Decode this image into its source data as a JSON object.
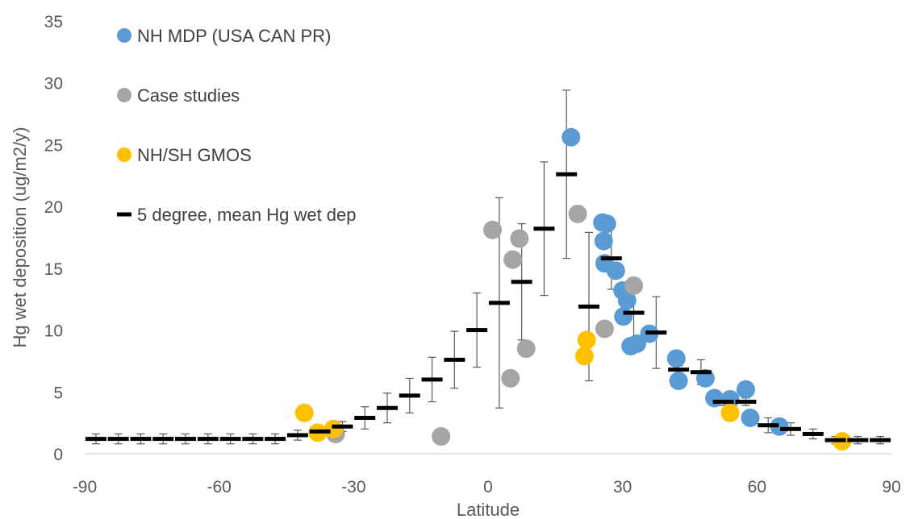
{
  "chart_data": {
    "type": "scatter",
    "title": "",
    "xlabel": "Latitude",
    "ylabel": "Hg wet deposition (ug/m2/y)",
    "xlim": [
      -90,
      90
    ],
    "ylim": [
      0,
      35
    ],
    "xticks": [
      -90,
      -60,
      -30,
      0,
      30,
      60,
      90
    ],
    "yticks": [
      0,
      5,
      10,
      15,
      20,
      25,
      30,
      35
    ],
    "grid": false,
    "legend_position": "top-left",
    "series": [
      {
        "name": "NH MDP (USA CAN PR)",
        "marker": "circle",
        "color": "#5b9bd5",
        "points": [
          [
            18.5,
            25.6
          ],
          [
            25.5,
            18.7
          ],
          [
            26.5,
            18.6
          ],
          [
            25.8,
            17.2
          ],
          [
            26,
            15.4
          ],
          [
            28.5,
            14.8
          ],
          [
            30,
            13.2
          ],
          [
            31,
            12.4
          ],
          [
            30.2,
            11.1
          ],
          [
            31.8,
            8.7
          ],
          [
            33.2,
            8.9
          ],
          [
            36,
            9.7
          ],
          [
            42,
            7.7
          ],
          [
            42.5,
            5.9
          ],
          [
            48.5,
            6.1
          ],
          [
            50.5,
            4.5
          ],
          [
            54,
            4.4
          ],
          [
            57.5,
            5.2
          ],
          [
            58.5,
            2.9
          ],
          [
            65,
            2.2
          ]
        ]
      },
      {
        "name": "Case studies",
        "marker": "circle",
        "color": "#a5a5a5",
        "points": [
          [
            -34,
            1.6
          ],
          [
            -10.5,
            1.4
          ],
          [
            1,
            18.1
          ],
          [
            5,
            6.1
          ],
          [
            5.5,
            15.7
          ],
          [
            7,
            17.4
          ],
          [
            8.5,
            8.5
          ],
          [
            20,
            19.4
          ],
          [
            26,
            10.1
          ],
          [
            32.5,
            13.6
          ]
        ]
      },
      {
        "name": "NH/SH GMOS",
        "marker": "circle",
        "color": "#ffc000",
        "points": [
          [
            -41,
            3.3
          ],
          [
            -38,
            1.7
          ],
          [
            -34.5,
            2.0
          ],
          [
            21.5,
            7.9
          ],
          [
            22,
            9.2
          ],
          [
            54,
            3.3
          ],
          [
            79,
            1.0
          ]
        ]
      },
      {
        "name": "5 degree, mean Hg wet dep",
        "marker": "dash",
        "color": "#000000",
        "points": [
          [
            -87.5,
            1.2,
            0.4
          ],
          [
            -82.5,
            1.2,
            0.4
          ],
          [
            -77.5,
            1.2,
            0.4
          ],
          [
            -72.5,
            1.2,
            0.4
          ],
          [
            -67.5,
            1.2,
            0.4
          ],
          [
            -62.5,
            1.2,
            0.4
          ],
          [
            -57.5,
            1.2,
            0.4
          ],
          [
            -52.5,
            1.2,
            0.4
          ],
          [
            -47.5,
            1.2,
            0.4
          ],
          [
            -42.5,
            1.5,
            0.4
          ],
          [
            -37.5,
            1.8,
            0.4
          ],
          [
            -32.5,
            2.2,
            0.4
          ],
          [
            -27.5,
            2.9,
            0.9
          ],
          [
            -22.5,
            3.7,
            1.2
          ],
          [
            -17.5,
            4.7,
            1.4
          ],
          [
            -12.5,
            6.0,
            1.8
          ],
          [
            -7.5,
            7.6,
            2.3
          ],
          [
            -2.5,
            10.0,
            3.0
          ],
          [
            2.5,
            12.2,
            8.5
          ],
          [
            7.5,
            13.9,
            4.7
          ],
          [
            12.5,
            18.2,
            5.4
          ],
          [
            17.5,
            22.6,
            6.8
          ],
          [
            22.5,
            11.9,
            6.0
          ],
          [
            27.5,
            15.8,
            2.5
          ],
          [
            32.5,
            11.4,
            2.4
          ],
          [
            37.5,
            9.8,
            2.9
          ],
          [
            42.5,
            6.8,
            0.3
          ],
          [
            47.5,
            6.6,
            1.0
          ],
          [
            52.5,
            4.2,
            0.3
          ],
          [
            57.5,
            4.2,
            0.3
          ],
          [
            62.5,
            2.3,
            0.6
          ],
          [
            67.5,
            2.0,
            0.5
          ],
          [
            72.5,
            1.6,
            0.4
          ],
          [
            77.5,
            1.1,
            0.3
          ],
          [
            82.5,
            1.1,
            0.3
          ],
          [
            87.5,
            1.1,
            0.3
          ]
        ]
      }
    ]
  }
}
